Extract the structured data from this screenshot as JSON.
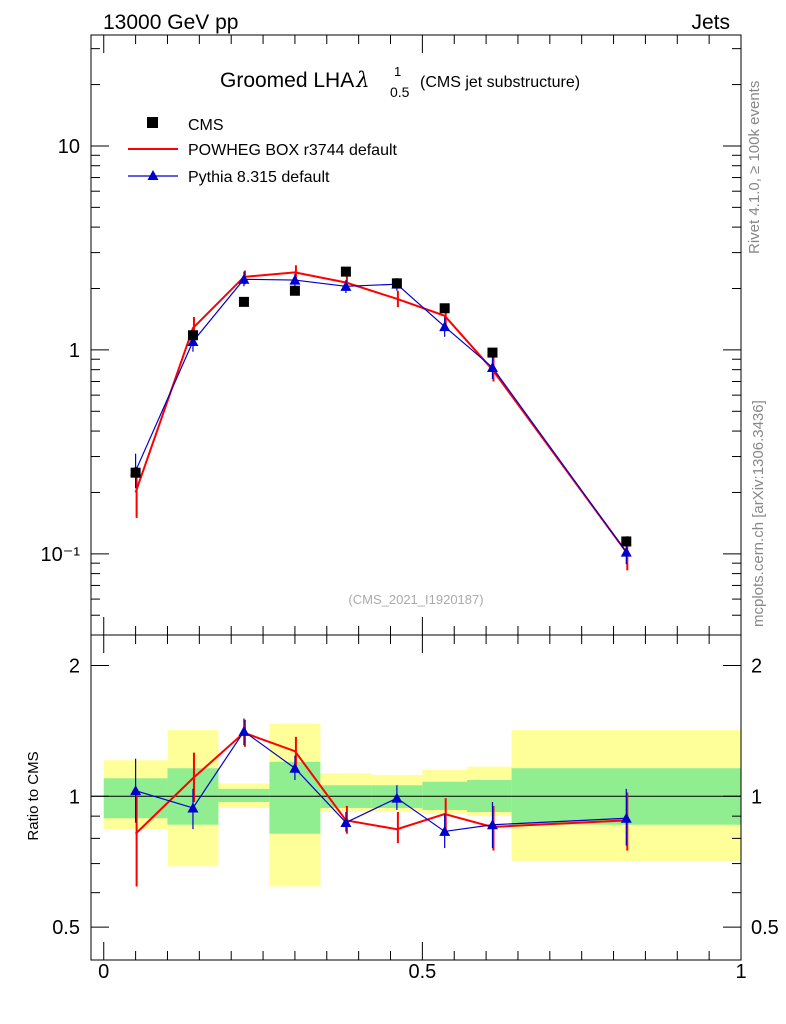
{
  "header": {
    "left": "13000 GeV pp",
    "right": "Jets"
  },
  "title": {
    "main": "Groomed LHA",
    "symbol": "λ",
    "sup": "1",
    "sub": "0.5",
    "suffix": "(CMS jet substructure)"
  },
  "side_text": {
    "top": "Rivet 4.1.0, ≥ 100k events",
    "bottom": "mcplots.cern.ch [arXiv:1306.3436]"
  },
  "watermark": "(CMS_2021_I1920187)",
  "colors": {
    "data": "#000000",
    "powheg": "#ff0000",
    "pythia": "#0000cc",
    "band_inner": "#90ee90",
    "band_outer": "#ffff99"
  },
  "chart_data": [
    {
      "panel": "main",
      "type": "line",
      "yscale": "log",
      "ylim": [
        0.04,
        35
      ],
      "xlim": [
        -0.02,
        1.0
      ],
      "ytick_labels": [
        "10",
        "1",
        "10⁻¹"
      ],
      "ytick_values": [
        10,
        1,
        0.1
      ],
      "legend_position": "top-left",
      "legend": [
        "CMS",
        "POWHEG BOX r3744 default",
        "Pythia 8.315 default"
      ],
      "x": [
        0.05,
        0.14,
        0.22,
        0.3,
        0.38,
        0.46,
        0.535,
        0.61,
        0.82
      ],
      "bin_edges": [
        0,
        0.1,
        0.18,
        0.26,
        0.34,
        0.42,
        0.5,
        0.57,
        0.64,
        1.0
      ],
      "series": [
        {
          "name": "CMS",
          "values": [
            0.25,
            1.18,
            1.72,
            1.95,
            2.42,
            2.12,
            1.6,
            0.97,
            0.115
          ]
        },
        {
          "name": "POWHEG BOX r3744 default",
          "values": [
            0.2,
            1.28,
            2.28,
            2.4,
            2.14,
            1.78,
            1.47,
            0.8,
            0.102
          ],
          "err_low": [
            0.15,
            1.12,
            2.1,
            2.25,
            2.0,
            1.62,
            1.3,
            0.7,
            0.083
          ],
          "err_high": [
            0.25,
            1.45,
            2.45,
            2.6,
            2.3,
            1.95,
            1.62,
            0.92,
            0.122
          ]
        },
        {
          "name": "Pythia 8.315 default",
          "values": [
            0.255,
            1.1,
            2.22,
            2.2,
            2.05,
            2.1,
            1.3,
            0.82,
            0.102
          ],
          "err_low": [
            0.21,
            0.98,
            2.05,
            2.05,
            1.9,
            1.95,
            1.16,
            0.72,
            0.089
          ],
          "err_high": [
            0.31,
            1.22,
            2.42,
            2.36,
            2.2,
            2.25,
            1.45,
            0.93,
            0.116
          ]
        }
      ]
    },
    {
      "panel": "ratio",
      "type": "line",
      "ylabel": "Ratio to CMS",
      "yscale": "log",
      "ylim": [
        0.42,
        2.35
      ],
      "ytick_labels": [
        "2",
        "1",
        "0.5"
      ],
      "ytick_values": [
        2,
        1,
        0.5
      ],
      "xtick_labels": [
        "0",
        "0.5",
        "1"
      ],
      "xtick_values": [
        0,
        0.5,
        1
      ],
      "bands": {
        "inner_low": [
          0.89,
          0.86,
          0.97,
          0.82,
          0.94,
          0.94,
          0.93,
          0.92,
          0.86
        ],
        "inner_high": [
          1.1,
          1.16,
          1.04,
          1.2,
          1.06,
          1.06,
          1.08,
          1.09,
          1.16
        ],
        "outer_low": [
          0.84,
          0.69,
          0.94,
          0.62,
          0.92,
          0.92,
          0.91,
          0.9,
          0.71
        ],
        "outer_high": [
          1.21,
          1.42,
          1.07,
          1.47,
          1.13,
          1.12,
          1.15,
          1.17,
          1.42
        ]
      },
      "series": [
        {
          "name": "POWHEG BOX r3744 default",
          "values": [
            0.82,
            1.1,
            1.4,
            1.27,
            0.88,
            0.84,
            0.91,
            0.85,
            0.88
          ],
          "err_low": [
            0.62,
            0.97,
            1.3,
            1.17,
            0.82,
            0.78,
            0.82,
            0.75,
            0.75
          ],
          "err_high": [
            1.02,
            1.26,
            1.5,
            1.37,
            0.95,
            0.92,
            0.99,
            0.95,
            1.02
          ]
        },
        {
          "name": "Pythia 8.315 default",
          "values": [
            1.03,
            0.94,
            1.41,
            1.16,
            0.87,
            0.99,
            0.83,
            0.86,
            0.89
          ],
          "err_low": [
            0.87,
            0.84,
            1.31,
            1.09,
            0.83,
            0.93,
            0.76,
            0.76,
            0.77
          ],
          "err_high": [
            1.22,
            1.04,
            1.51,
            1.24,
            0.92,
            1.06,
            0.91,
            0.97,
            1.04
          ]
        }
      ]
    }
  ]
}
